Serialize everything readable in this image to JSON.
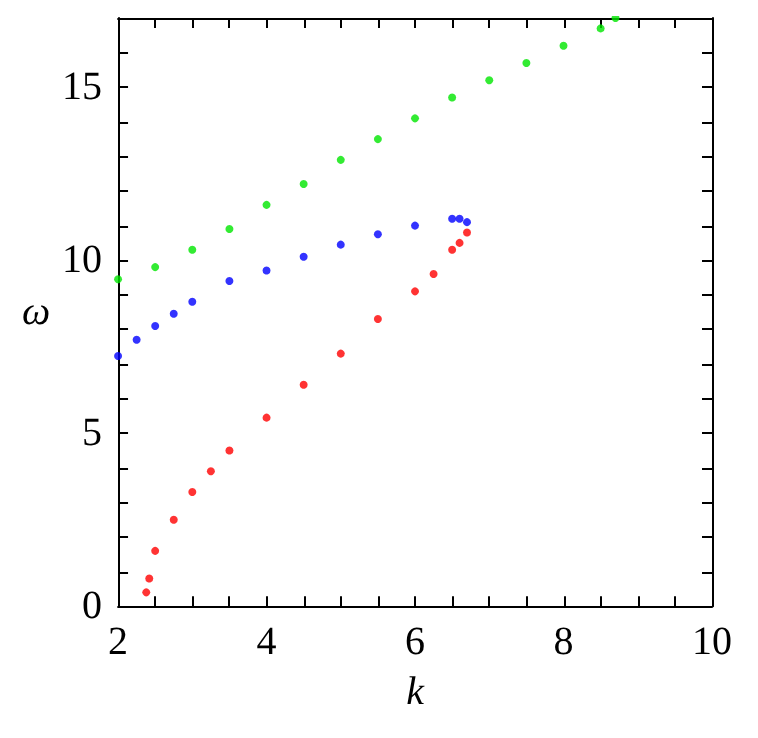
{
  "chart_data": {
    "type": "scatter",
    "xlabel": "k",
    "ylabel": "ω",
    "marker": "circle",
    "grid": false,
    "xlim": [
      2,
      10
    ],
    "ylim": [
      0,
      17
    ],
    "xticks": [
      2,
      {
        "value": 2.5,
        "label": null
      },
      {
        "value": 3,
        "label": null
      },
      {
        "value": 3.5,
        "label": null
      },
      4,
      {
        "value": 4.5,
        "label": null
      },
      {
        "value": 5,
        "label": null
      },
      {
        "value": 5.5,
        "label": null
      },
      6,
      {
        "value": 6.5,
        "label": null
      },
      {
        "value": 7,
        "label": null
      },
      {
        "value": 7.5,
        "label": null
      },
      8,
      {
        "value": 8.5,
        "label": null
      },
      {
        "value": 9,
        "label": null
      },
      {
        "value": 9.5,
        "label": null
      },
      10
    ],
    "yticks": [
      0,
      {
        "value": 1,
        "label": null
      },
      {
        "value": 2,
        "label": null
      },
      {
        "value": 3,
        "label": null
      },
      {
        "value": 4,
        "label": null
      },
      5,
      {
        "value": 6,
        "label": null
      },
      {
        "value": 7,
        "label": null
      },
      {
        "value": 8,
        "label": null
      },
      {
        "value": 9,
        "label": null
      },
      10,
      {
        "value": 11,
        "label": null
      },
      {
        "value": 12,
        "label": null
      },
      {
        "value": 13,
        "label": null
      },
      {
        "value": 14,
        "label": null
      },
      15,
      {
        "value": 16,
        "label": null
      },
      {
        "value": 17,
        "label": null
      }
    ],
    "series": [
      {
        "color": "#00e600",
        "x": [
          2,
          2.5,
          3,
          3.5,
          4,
          4.5,
          5,
          5.5,
          6,
          6.5,
          7,
          7.5,
          8,
          8.5,
          8.7
        ],
        "values": [
          9.45,
          9.8,
          10.3,
          10.9,
          11.6,
          12.2,
          12.9,
          13.5,
          14.1,
          14.7,
          15.2,
          15.7,
          16.2,
          16.7,
          17
        ]
      },
      {
        "color": "#0000ff",
        "x": [
          2,
          2.25,
          2.5,
          2.75,
          3,
          3.5,
          4,
          4.5,
          5,
          5.5,
          6,
          6.5,
          6.6,
          6.7
        ],
        "values": [
          7.23,
          7.7,
          8.1,
          8.45,
          8.8,
          9.4,
          9.7,
          10.1,
          10.45,
          10.75,
          11,
          11.2,
          11.2,
          11.1
        ]
      },
      {
        "color": "#ff0000",
        "x": [
          2.38,
          2.42,
          2.5,
          2.75,
          3,
          3.25,
          3.5,
          4,
          4.5,
          5,
          5.5,
          6,
          6.25,
          6.5,
          6.6,
          6.7
        ],
        "values": [
          0.4,
          0.8,
          1.6,
          2.5,
          3.3,
          3.9,
          4.5,
          5.45,
          6.4,
          7.3,
          8.3,
          9.1,
          9.6,
          10.3,
          10.5,
          10.8
        ]
      }
    ]
  }
}
